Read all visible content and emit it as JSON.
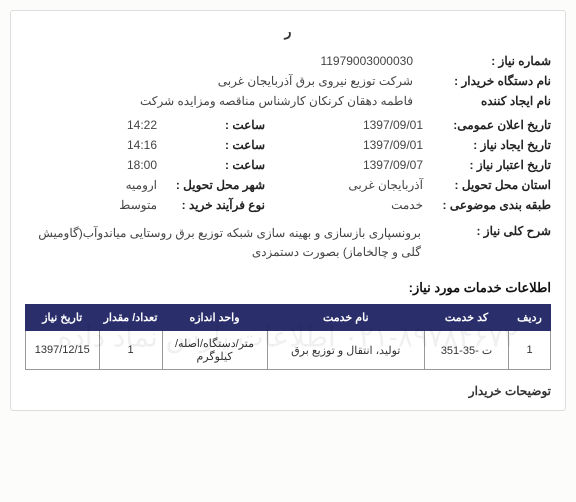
{
  "header": {
    "partial_title": "ر"
  },
  "fields": {
    "need_no_label": "شماره نیاز :",
    "need_no": "11979003000030",
    "buyer_label": "نام دستگاه خریدار :",
    "buyer": "شرکت توزیع نیروی برق آذربایجان غربی",
    "creator_label": "نام ایجاد کننده",
    "creator": "فاطمه دهقان کرنکان کارشناس مناقصه ومزایده شرکت",
    "announce_date_label": "تاریخ اعلان عمومی:",
    "announce_date": "1397/09/01",
    "announce_time_label": "ساعت :",
    "announce_time": "14:22",
    "create_date_label": "تاریخ ایجاد نیاز :",
    "create_date": "1397/09/01",
    "create_time_label": "ساعت :",
    "create_time": "14:16",
    "validity_date_label": "تاریخ اعتبار نیاز :",
    "validity_date": "1397/09/07",
    "validity_time_label": "ساعت :",
    "validity_time": "18:00",
    "delivery_province_label": "استان محل تحویل :",
    "delivery_province": "آذربایجان غربی",
    "delivery_city_label": "شهر محل تحویل :",
    "delivery_city": "ارومیه",
    "subject_class_label": "طبقه بندی موضوعی :",
    "subject_class": "خدمت",
    "process_type_label": "نوع فرآیند خرید :",
    "process_type": "متوسط",
    "desc_label": "شرح کلی نیاز :",
    "desc": "برونسپاری بازسازی و بهینه سازی شبکه توزیع برق روستایی میاندوآب(گاومیش گلی و چالخاماز) بصورت دستمزدی"
  },
  "services": {
    "section_title": "اطلاعات خدمات مورد نیاز:",
    "columns": [
      "ردیف",
      "کد خدمت",
      "نام خدمت",
      "واحد اندازه",
      "تعداد/ مقدار",
      "تاریخ نیاز"
    ],
    "column_widths": [
      "8%",
      "16%",
      "30%",
      "20%",
      "12%",
      "14%"
    ],
    "rows": [
      {
        "idx": "1",
        "code": "ت -35-351",
        "name": "تولید، انتقال و توزیع برق",
        "unit": "متر/دستگاه/اصله/کیلوگرم",
        "qty": "1",
        "date": "1397/12/15"
      }
    ]
  },
  "footer": {
    "buyer_notes_label": "توضیحات خریدار"
  },
  "watermark": "۰۲۱-۸۹۷۸۴۶۷۲   اطلاعات پارس نماد داده",
  "style": {
    "header_bg": "#2a2f6b",
    "header_fg": "#ffffff",
    "border_color": "#999999",
    "page_bg": "#fcfcfa"
  }
}
